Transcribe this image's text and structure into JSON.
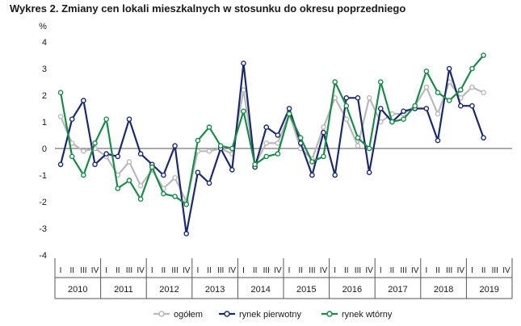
{
  "chart_data": {
    "type": "line",
    "title": "Wykres 2. Zmiany cen lokali mieszkalnych w stosunku do okresu poprzedniego",
    "ylabel": "%",
    "ylim": [
      -4,
      4
    ],
    "yticks": [
      -4,
      -3,
      -2,
      -1,
      0,
      1,
      2,
      3,
      4
    ],
    "grid": false,
    "legend_position": "bottom",
    "quarter_labels": [
      "I",
      "II",
      "III",
      "IV"
    ],
    "years": [
      "2010",
      "2011",
      "2012",
      "2013",
      "2014",
      "2015",
      "2016",
      "2017",
      "2018",
      "2019"
    ],
    "series": [
      {
        "name": "ogółem",
        "color": "#b9b9b9",
        "values": [
          1.2,
          0.2,
          -0.1,
          0.0,
          -0.3,
          -1.0,
          -0.5,
          -1.4,
          -0.8,
          -1.5,
          -1.1,
          -2.0,
          -0.1,
          -0.1,
          0.0,
          -0.2,
          2.2,
          -0.6,
          0.2,
          0.2,
          1.3,
          0.0,
          -0.4,
          0.8,
          1.9,
          1.1,
          0.1,
          1.9,
          1.0,
          1.3,
          1.3,
          1.6,
          2.3,
          1.3,
          2.5,
          1.9,
          2.3,
          2.1
        ]
      },
      {
        "name": "rynek pierwotny",
        "color": "#1b2a6b",
        "values": [
          -0.6,
          1.1,
          1.8,
          -0.6,
          -0.2,
          -0.3,
          1.1,
          -0.2,
          -0.6,
          -1.0,
          0.1,
          -3.2,
          -0.9,
          -1.3,
          0.0,
          -0.8,
          3.2,
          -0.7,
          0.8,
          0.5,
          1.5,
          0.2,
          -1.0,
          0.6,
          -1.0,
          1.9,
          1.9,
          -0.9,
          1.5,
          1.0,
          1.4,
          1.5,
          1.5,
          0.3,
          3.0,
          1.6,
          1.6,
          0.4
        ]
      },
      {
        "name": "rynek wtórny",
        "color": "#1a8a4a",
        "values": [
          2.1,
          -0.3,
          -1.0,
          0.2,
          1.1,
          -1.5,
          -1.2,
          -1.9,
          -0.7,
          -1.7,
          -1.8,
          -2.1,
          0.3,
          0.8,
          0.1,
          0.0,
          1.4,
          -0.6,
          -0.3,
          -0.2,
          1.3,
          0.4,
          -0.5,
          -0.3,
          2.5,
          1.6,
          0.4,
          0.0,
          2.5,
          1.0,
          1.1,
          1.6,
          2.9,
          2.1,
          1.8,
          2.2,
          3.0,
          3.5
        ]
      }
    ]
  }
}
